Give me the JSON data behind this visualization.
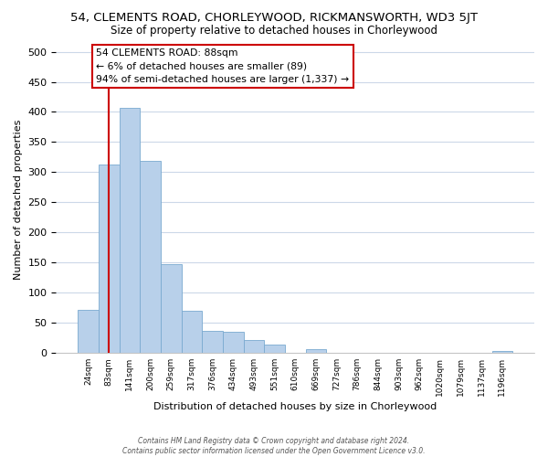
{
  "title": "54, CLEMENTS ROAD, CHORLEYWOOD, RICKMANSWORTH, WD3 5JT",
  "subtitle": "Size of property relative to detached houses in Chorleywood",
  "xlabel": "Distribution of detached houses by size in Chorleywood",
  "ylabel": "Number of detached properties",
  "bar_labels": [
    "24sqm",
    "83sqm",
    "141sqm",
    "200sqm",
    "259sqm",
    "317sqm",
    "376sqm",
    "434sqm",
    "493sqm",
    "551sqm",
    "610sqm",
    "669sqm",
    "727sqm",
    "786sqm",
    "844sqm",
    "903sqm",
    "962sqm",
    "1020sqm",
    "1079sqm",
    "1137sqm",
    "1196sqm"
  ],
  "bar_heights": [
    72,
    313,
    407,
    319,
    147,
    70,
    37,
    35,
    21,
    14,
    0,
    6,
    0,
    0,
    0,
    0,
    0,
    0,
    0,
    0,
    3
  ],
  "bar_color": "#b8d0ea",
  "bar_edge_color": "#7aaad0",
  "grid_color": "#ccd8e8",
  "vline_x": 1,
  "vline_color": "#cc0000",
  "annotation_text": "54 CLEMENTS ROAD: 88sqm\n← 6% of detached houses are smaller (89)\n94% of semi-detached houses are larger (1,337) →",
  "annotation_box_edge": "#cc0000",
  "annotation_box_face": "#ffffff",
  "ylim": [
    0,
    510
  ],
  "yticks": [
    0,
    50,
    100,
    150,
    200,
    250,
    300,
    350,
    400,
    450,
    500
  ],
  "footer_line1": "Contains HM Land Registry data © Crown copyright and database right 2024.",
  "footer_line2": "Contains public sector information licensed under the Open Government Licence v3.0."
}
